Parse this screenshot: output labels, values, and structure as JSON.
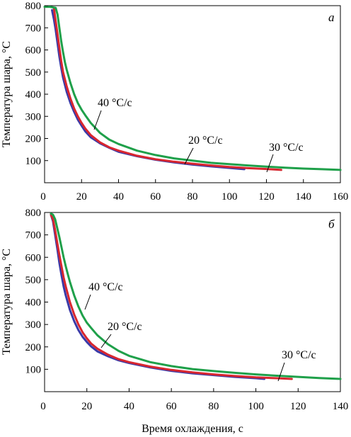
{
  "chart_data": [
    {
      "type": "line",
      "panel_label": "а",
      "ylabel": "Температура шара, °С",
      "xlabel": "",
      "xlim": [
        0,
        160
      ],
      "ylim": [
        0,
        800
      ],
      "xticks": [
        "0",
        "20",
        "40",
        "60",
        "80",
        "100",
        "120",
        "140",
        "160"
      ],
      "yticks": [
        "100",
        "200",
        "300",
        "400",
        "500",
        "600",
        "700",
        "800"
      ],
      "grid": false,
      "annotations": [
        "40 °С/с",
        "20 °С/с",
        "30 °С/с"
      ],
      "colors": {
        "blue": "#3a3aa8",
        "red": "#d8262f",
        "green": "#1fa04a"
      },
      "series": [
        {
          "color_name": "blue",
          "x": [
            4,
            5,
            6,
            7,
            8,
            9,
            10,
            12,
            14,
            16,
            18,
            20,
            22,
            25,
            30,
            35,
            40,
            50,
            60,
            70,
            80,
            90,
            100,
            108
          ],
          "y": [
            780,
            740,
            690,
            630,
            570,
            520,
            475,
            410,
            360,
            320,
            285,
            258,
            232,
            205,
            178,
            158,
            140,
            120,
            104,
            92,
            82,
            74,
            67,
            61
          ]
        },
        {
          "color_name": "red",
          "x": [
            5,
            6,
            7,
            8,
            9,
            10,
            12,
            14,
            16,
            18,
            20,
            22,
            25,
            30,
            35,
            40,
            50,
            60,
            70,
            80,
            90,
            100,
            110,
            120,
            128
          ],
          "y": [
            790,
            730,
            670,
            610,
            550,
            500,
            435,
            380,
            335,
            300,
            270,
            245,
            215,
            182,
            160,
            145,
            122,
            106,
            95,
            86,
            78,
            71,
            66,
            62,
            58
          ]
        },
        {
          "color_name": "green",
          "x": [
            0,
            3,
            6,
            7,
            8,
            9,
            10,
            11,
            12,
            14,
            16,
            18,
            20,
            22,
            25,
            30,
            35,
            40,
            50,
            60,
            70,
            80,
            90,
            100,
            110,
            120,
            130,
            140,
            150,
            160
          ],
          "y": [
            795,
            795,
            790,
            760,
            700,
            640,
            590,
            545,
            510,
            450,
            400,
            360,
            330,
            305,
            270,
            225,
            195,
            175,
            145,
            125,
            110,
            100,
            90,
            84,
            78,
            73,
            68,
            64,
            61,
            58
          ]
        }
      ]
    },
    {
      "type": "line",
      "panel_label": "б",
      "ylabel": "Температура шара, °С",
      "xlabel": "Время охлаждения, с",
      "xlim": [
        0,
        140
      ],
      "ylim": [
        0,
        800
      ],
      "xticks": [
        "0",
        "20",
        "40",
        "60",
        "80",
        "100",
        "120",
        "140"
      ],
      "yticks": [
        "100",
        "200",
        "300",
        "400",
        "500",
        "600",
        "700",
        "800"
      ],
      "grid": false,
      "annotations": [
        "40 °С/с",
        "20 °С/с",
        "30 °С/с"
      ],
      "colors": {
        "blue": "#3a3aa8",
        "red": "#d8262f",
        "green": "#1fa04a"
      },
      "series": [
        {
          "color_name": "blue",
          "x": [
            3,
            4,
            5,
            6,
            7,
            8,
            9,
            10,
            12,
            14,
            16,
            18,
            20,
            22,
            25,
            30,
            35,
            40,
            50,
            60,
            70,
            80,
            90,
            100,
            104
          ],
          "y": [
            790,
            760,
            700,
            640,
            575,
            520,
            470,
            430,
            365,
            315,
            275,
            245,
            222,
            202,
            180,
            158,
            140,
            128,
            108,
            93,
            82,
            74,
            66,
            60,
            57
          ]
        },
        {
          "color_name": "red",
          "x": [
            3,
            4,
            5,
            6,
            7,
            8,
            9,
            10,
            12,
            14,
            16,
            18,
            20,
            22,
            25,
            30,
            35,
            40,
            50,
            60,
            70,
            80,
            90,
            100,
            110,
            117
          ],
          "y": [
            790,
            770,
            720,
            665,
            610,
            560,
            510,
            470,
            400,
            345,
            300,
            265,
            238,
            215,
            192,
            165,
            145,
            132,
            112,
            97,
            86,
            77,
            70,
            64,
            60,
            57
          ]
        },
        {
          "color_name": "green",
          "x": [
            3,
            4,
            5,
            6,
            7,
            8,
            9,
            10,
            11,
            12,
            14,
            16,
            18,
            20,
            22,
            25,
            30,
            35,
            40,
            50,
            60,
            70,
            80,
            90,
            100,
            110,
            120,
            130,
            140
          ],
          "y": [
            795,
            790,
            770,
            730,
            690,
            645,
            600,
            560,
            525,
            490,
            430,
            380,
            340,
            308,
            285,
            252,
            212,
            182,
            160,
            132,
            114,
            101,
            92,
            84,
            77,
            71,
            66,
            61,
            57
          ]
        }
      ]
    }
  ]
}
